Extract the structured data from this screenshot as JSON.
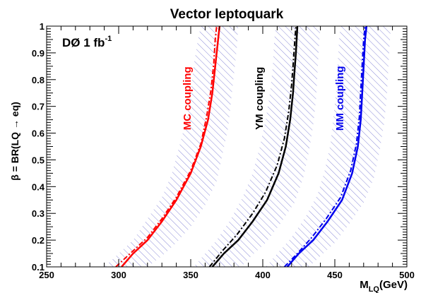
{
  "chart_data": {
    "type": "line",
    "title": "Vector leptoquark",
    "annotation": {
      "main": "DØ 1 fb",
      "superscript": "-1"
    },
    "xlabel": {
      "main": "M",
      "sub": "LQ",
      "suffix": "(GeV)"
    },
    "ylabel": "β = BR(LQ → eq)",
    "xlim": [
      250,
      500
    ],
    "ylim": [
      0.1,
      1.0
    ],
    "x_ticks": [
      250,
      300,
      350,
      400,
      450,
      500
    ],
    "x_tick_labels": [
      "250",
      "300",
      "350",
      "400",
      "450",
      "500"
    ],
    "y_ticks": [
      0.1,
      0.2,
      0.3,
      0.4,
      0.5,
      0.6,
      0.7,
      0.8,
      0.9,
      1.0
    ],
    "y_tick_labels": [
      "0.1",
      "0.2",
      "0.3",
      "0.4",
      "0.5",
      "0.6",
      "0.7",
      "0.8",
      "0.9",
      "1"
    ],
    "grid": false,
    "hatch_color": "#8c8cd8",
    "groups": [
      {
        "label": "MC coupling",
        "color": "#ff0000",
        "observed": [
          [
            302,
            0.1
          ],
          [
            310,
            0.15
          ],
          [
            320,
            0.2
          ],
          [
            330,
            0.27
          ],
          [
            340,
            0.35
          ],
          [
            350,
            0.45
          ],
          [
            357,
            0.55
          ],
          [
            362,
            0.65
          ],
          [
            365,
            0.75
          ],
          [
            367,
            0.85
          ],
          [
            369,
            0.95
          ],
          [
            370,
            1.0
          ]
        ],
        "expected": [
          [
            298,
            0.1
          ],
          [
            310,
            0.16
          ],
          [
            320,
            0.21
          ],
          [
            330,
            0.28
          ],
          [
            340,
            0.36
          ],
          [
            350,
            0.46
          ],
          [
            357,
            0.56
          ],
          [
            361,
            0.66
          ],
          [
            364,
            0.76
          ],
          [
            366,
            0.86
          ],
          [
            367,
            0.95
          ],
          [
            368,
            1.0
          ]
        ],
        "band_low": [
          [
            290,
            0.1
          ],
          [
            300,
            0.15
          ],
          [
            310,
            0.2
          ],
          [
            320,
            0.28
          ],
          [
            330,
            0.36
          ],
          [
            337,
            0.45
          ],
          [
            342,
            0.55
          ],
          [
            347,
            0.65
          ],
          [
            350,
            0.75
          ],
          [
            352,
            0.85
          ],
          [
            355,
            0.95
          ],
          [
            357,
            1.0
          ]
        ],
        "band_high": [
          [
            320,
            0.1
          ],
          [
            330,
            0.14
          ],
          [
            340,
            0.19
          ],
          [
            350,
            0.25
          ],
          [
            360,
            0.33
          ],
          [
            368,
            0.42
          ],
          [
            372,
            0.52
          ],
          [
            376,
            0.62
          ],
          [
            378,
            0.72
          ],
          [
            380,
            0.82
          ],
          [
            382,
            0.92
          ],
          [
            383,
            1.0
          ]
        ]
      },
      {
        "label": "YM coupling",
        "color": "#000000",
        "observed": [
          [
            365,
            0.1
          ],
          [
            373,
            0.15
          ],
          [
            383,
            0.2
          ],
          [
            393,
            0.27
          ],
          [
            403,
            0.35
          ],
          [
            411,
            0.45
          ],
          [
            416,
            0.55
          ],
          [
            419,
            0.65
          ],
          [
            421,
            0.75
          ],
          [
            422,
            0.83
          ],
          [
            423,
            0.9
          ],
          [
            424,
            1.0
          ]
        ],
        "expected": [
          [
            363,
            0.1
          ],
          [
            372,
            0.16
          ],
          [
            382,
            0.22
          ],
          [
            393,
            0.3
          ],
          [
            402,
            0.38
          ],
          [
            410,
            0.48
          ],
          [
            415,
            0.58
          ],
          [
            418,
            0.68
          ],
          [
            420,
            0.78
          ],
          [
            421,
            0.85
          ],
          [
            422,
            0.93
          ],
          [
            423,
            1.0
          ]
        ],
        "band_low": [
          [
            352,
            0.1
          ],
          [
            360,
            0.15
          ],
          [
            368,
            0.2
          ],
          [
            378,
            0.28
          ],
          [
            386,
            0.36
          ],
          [
            393,
            0.45
          ],
          [
            398,
            0.55
          ],
          [
            402,
            0.65
          ],
          [
            405,
            0.75
          ],
          [
            407,
            0.85
          ],
          [
            408,
            0.95
          ],
          [
            409,
            1.0
          ]
        ],
        "band_high": [
          [
            385,
            0.1
          ],
          [
            392,
            0.14
          ],
          [
            402,
            0.19
          ],
          [
            412,
            0.26
          ],
          [
            422,
            0.34
          ],
          [
            428,
            0.43
          ],
          [
            432,
            0.53
          ],
          [
            435,
            0.63
          ],
          [
            437,
            0.73
          ],
          [
            438,
            0.83
          ],
          [
            439,
            0.93
          ],
          [
            440,
            1.0
          ]
        ]
      },
      {
        "label": "MM coupling",
        "color": "#0000ee",
        "observed": [
          [
            417,
            0.1
          ],
          [
            425,
            0.15
          ],
          [
            435,
            0.2
          ],
          [
            445,
            0.27
          ],
          [
            455,
            0.35
          ],
          [
            462,
            0.45
          ],
          [
            466,
            0.55
          ],
          [
            468,
            0.65
          ],
          [
            469,
            0.75
          ],
          [
            470,
            0.85
          ],
          [
            471,
            0.95
          ],
          [
            472,
            1.0
          ]
        ],
        "expected": [
          [
            415,
            0.1
          ],
          [
            424,
            0.15
          ],
          [
            434,
            0.21
          ],
          [
            444,
            0.28
          ],
          [
            454,
            0.36
          ],
          [
            461,
            0.46
          ],
          [
            465,
            0.56
          ],
          [
            467,
            0.66
          ],
          [
            468,
            0.76
          ],
          [
            469,
            0.86
          ],
          [
            470,
            0.95
          ],
          [
            471,
            1.0
          ]
        ],
        "band_low": [
          [
            402,
            0.1
          ],
          [
            410,
            0.15
          ],
          [
            420,
            0.21
          ],
          [
            430,
            0.29
          ],
          [
            438,
            0.37
          ],
          [
            443,
            0.46
          ],
          [
            447,
            0.56
          ],
          [
            449,
            0.66
          ],
          [
            451,
            0.76
          ],
          [
            452,
            0.86
          ],
          [
            453,
            0.95
          ],
          [
            454,
            1.0
          ]
        ],
        "band_high": [
          [
            432,
            0.1
          ],
          [
            440,
            0.14
          ],
          [
            450,
            0.19
          ],
          [
            460,
            0.26
          ],
          [
            470,
            0.34
          ],
          [
            477,
            0.43
          ],
          [
            481,
            0.53
          ],
          [
            484,
            0.63
          ],
          [
            486,
            0.73
          ],
          [
            487,
            0.83
          ],
          [
            488,
            0.93
          ],
          [
            489,
            1.0
          ]
        ]
      }
    ]
  }
}
